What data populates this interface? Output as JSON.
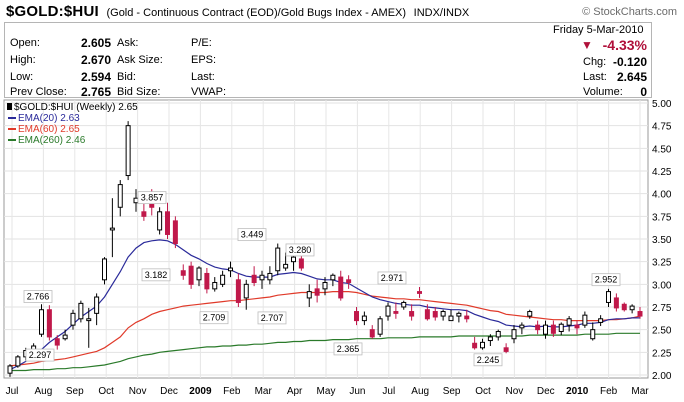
{
  "header": {
    "symbol": "$GOLD:$HUI",
    "description": "(Gold - Continuous Contract (EOD)/Gold Bugs Index - AMEX)",
    "exchange": "INDX/INDX",
    "brand": "© StockCharts.com"
  },
  "quote": {
    "date": "Friday 5-Mar-2010",
    "open_label": "Open:",
    "open": "2.605",
    "high_label": "High:",
    "high": "2.670",
    "low_label": "Low:",
    "low": "2.594",
    "prevclose_label": "Prev Close:",
    "prevclose": "2.765",
    "ask_label": "Ask:",
    "asksize_label": "Ask Size:",
    "bid_label": "Bid:",
    "bidsize_label": "Bid Size:",
    "pe_label": "P/E:",
    "eps_label": "EPS:",
    "last_label": "Last:",
    "vwap_label": "VWAP:",
    "change_pct": "-4.33%",
    "chg_label": "Chg:",
    "chg": "-0.120",
    "last_label2": "Last:",
    "last": "2.645",
    "volume_label": "Volume:",
    "volume": "0",
    "down_color": "#b0103a"
  },
  "chart_data": {
    "type": "candlestick",
    "title": "$GOLD:$HUI (Weekly) 2.65",
    "ylim": [
      2.0,
      5.0
    ],
    "y_ticks": [
      "2.00",
      "2.25",
      "2.50",
      "2.75",
      "3.00",
      "3.25",
      "3.50",
      "3.75",
      "4.00",
      "4.25",
      "4.50",
      "4.75",
      "5.00"
    ],
    "x_ticks": [
      "Jul",
      "Aug",
      "Sep",
      "Oct",
      "Nov",
      "Dec",
      "2009",
      "Feb",
      "Mar",
      "Apr",
      "May",
      "Jun",
      "Jul",
      "Aug",
      "Sep",
      "Oct",
      "Nov",
      "Dec",
      "2010",
      "Feb",
      "Mar"
    ],
    "legend": [
      {
        "name": "EMA(20) 2.63",
        "color": "#2a2a9a"
      },
      {
        "name": "EMA(60) 2.65",
        "color": "#e03a2a"
      },
      {
        "name": "EMA(260) 2.46",
        "color": "#2a7a2a"
      }
    ],
    "up_color": "#000000",
    "down_color": "#c0184a",
    "annotations": [
      {
        "text": "2.766",
        "value": 2.766
      },
      {
        "text": "2.297",
        "value": 2.297
      },
      {
        "text": "3.857",
        "value": 3.857
      },
      {
        "text": "3.182",
        "value": 3.182
      },
      {
        "text": "2.709",
        "value": 2.709
      },
      {
        "text": "3.449",
        "value": 3.449
      },
      {
        "text": "2.707",
        "value": 2.707
      },
      {
        "text": "3.280",
        "value": 3.28
      },
      {
        "text": "2.365",
        "value": 2.365
      },
      {
        "text": "2.971",
        "value": 2.971
      },
      {
        "text": "2.245",
        "value": 2.245
      },
      {
        "text": "2.952",
        "value": 2.952
      }
    ],
    "candles": [
      {
        "o": 2.02,
        "h": 2.12,
        "l": 1.98,
        "c": 2.1
      },
      {
        "o": 2.1,
        "h": 2.22,
        "l": 2.08,
        "c": 2.2
      },
      {
        "o": 2.2,
        "h": 2.3,
        "l": 2.16,
        "c": 2.27
      },
      {
        "o": 2.26,
        "h": 2.35,
        "l": 2.2,
        "c": 2.32
      },
      {
        "o": 2.45,
        "h": 2.78,
        "l": 2.42,
        "c": 2.72
      },
      {
        "o": 2.72,
        "h": 2.77,
        "l": 2.38,
        "c": 2.42
      },
      {
        "o": 2.4,
        "h": 2.44,
        "l": 2.28,
        "c": 2.33
      },
      {
        "o": 2.4,
        "h": 2.5,
        "l": 2.38,
        "c": 2.44
      },
      {
        "o": 2.55,
        "h": 2.72,
        "l": 2.5,
        "c": 2.68
      },
      {
        "o": 2.62,
        "h": 2.82,
        "l": 2.58,
        "c": 2.79
      },
      {
        "o": 2.6,
        "h": 2.74,
        "l": 2.3,
        "c": 2.62
      },
      {
        "o": 2.68,
        "h": 2.9,
        "l": 2.55,
        "c": 2.86
      },
      {
        "o": 3.05,
        "h": 3.3,
        "l": 3.0,
        "c": 3.28
      },
      {
        "o": 3.6,
        "h": 3.95,
        "l": 3.3,
        "c": 3.62
      },
      {
        "o": 3.85,
        "h": 4.15,
        "l": 3.75,
        "c": 4.1
      },
      {
        "o": 4.2,
        "h": 4.8,
        "l": 4.15,
        "c": 4.75
      },
      {
        "o": 3.9,
        "h": 4.05,
        "l": 3.8,
        "c": 3.95
      },
      {
        "o": 3.8,
        "h": 3.9,
        "l": 3.7,
        "c": 3.75
      },
      {
        "o": 3.9,
        "h": 4.05,
        "l": 3.76,
        "c": 3.85
      },
      {
        "o": 3.6,
        "h": 3.85,
        "l": 3.55,
        "c": 3.8
      },
      {
        "o": 3.8,
        "h": 3.9,
        "l": 3.5,
        "c": 3.55
      },
      {
        "o": 3.7,
        "h": 3.75,
        "l": 3.4,
        "c": 3.45
      },
      {
        "o": 3.15,
        "h": 3.22,
        "l": 3.05,
        "c": 3.1
      },
      {
        "o": 3.2,
        "h": 3.25,
        "l": 2.95,
        "c": 3.0
      },
      {
        "o": 3.05,
        "h": 3.2,
        "l": 2.98,
        "c": 3.18
      },
      {
        "o": 3.12,
        "h": 3.18,
        "l": 2.9,
        "c": 2.95
      },
      {
        "o": 2.95,
        "h": 3.08,
        "l": 2.92,
        "c": 3.02
      },
      {
        "o": 3.0,
        "h": 3.15,
        "l": 2.97,
        "c": 3.1
      },
      {
        "o": 3.15,
        "h": 3.25,
        "l": 3.08,
        "c": 3.18
      },
      {
        "o": 3.05,
        "h": 3.12,
        "l": 2.75,
        "c": 2.8
      },
      {
        "o": 2.85,
        "h": 3.05,
        "l": 2.72,
        "c": 3.0
      },
      {
        "o": 3.1,
        "h": 3.2,
        "l": 2.98,
        "c": 3.02
      },
      {
        "o": 3.05,
        "h": 3.15,
        "l": 2.95,
        "c": 3.1
      },
      {
        "o": 3.05,
        "h": 3.2,
        "l": 3.0,
        "c": 3.12
      },
      {
        "o": 3.15,
        "h": 3.45,
        "l": 3.1,
        "c": 3.4
      },
      {
        "o": 3.18,
        "h": 3.35,
        "l": 3.15,
        "c": 3.22
      },
      {
        "o": 3.25,
        "h": 3.35,
        "l": 3.15,
        "c": 3.3
      },
      {
        "o": 3.28,
        "h": 3.32,
        "l": 3.15,
        "c": 3.18
      },
      {
        "o": 2.85,
        "h": 3.0,
        "l": 2.75,
        "c": 2.92
      },
      {
        "o": 2.95,
        "h": 3.05,
        "l": 2.8,
        "c": 2.88
      },
      {
        "o": 2.95,
        "h": 3.08,
        "l": 2.88,
        "c": 3.02
      },
      {
        "o": 3.05,
        "h": 3.12,
        "l": 2.98,
        "c": 3.1
      },
      {
        "o": 3.08,
        "h": 3.15,
        "l": 2.82,
        "c": 2.85
      },
      {
        "o": 3.05,
        "h": 3.1,
        "l": 2.95,
        "c": 3.02
      },
      {
        "o": 2.7,
        "h": 2.75,
        "l": 2.55,
        "c": 2.6
      },
      {
        "o": 2.6,
        "h": 2.7,
        "l": 2.55,
        "c": 2.65
      },
      {
        "o": 2.5,
        "h": 2.55,
        "l": 2.4,
        "c": 2.42
      },
      {
        "o": 2.45,
        "h": 2.65,
        "l": 2.42,
        "c": 2.62
      },
      {
        "o": 2.65,
        "h": 2.8,
        "l": 2.6,
        "c": 2.76
      },
      {
        "o": 2.7,
        "h": 2.8,
        "l": 2.62,
        "c": 2.68
      },
      {
        "o": 2.75,
        "h": 2.82,
        "l": 2.72,
        "c": 2.8
      },
      {
        "o": 2.7,
        "h": 2.78,
        "l": 2.6,
        "c": 2.65
      },
      {
        "o": 2.92,
        "h": 2.97,
        "l": 2.85,
        "c": 2.9
      },
      {
        "o": 2.72,
        "h": 2.78,
        "l": 2.6,
        "c": 2.62
      },
      {
        "o": 2.7,
        "h": 2.75,
        "l": 2.6,
        "c": 2.64
      },
      {
        "o": 2.65,
        "h": 2.72,
        "l": 2.6,
        "c": 2.7
      },
      {
        "o": 2.6,
        "h": 2.72,
        "l": 2.6,
        "c": 2.65
      },
      {
        "o": 2.65,
        "h": 2.7,
        "l": 2.58,
        "c": 2.68
      },
      {
        "o": 2.65,
        "h": 2.72,
        "l": 2.58,
        "c": 2.62
      },
      {
        "o": 2.35,
        "h": 2.42,
        "l": 2.28,
        "c": 2.3
      },
      {
        "o": 2.3,
        "h": 2.4,
        "l": 2.28,
        "c": 2.36
      },
      {
        "o": 2.38,
        "h": 2.45,
        "l": 2.32,
        "c": 2.42
      },
      {
        "o": 2.42,
        "h": 2.5,
        "l": 2.38,
        "c": 2.48
      },
      {
        "o": 2.3,
        "h": 2.35,
        "l": 2.24,
        "c": 2.26
      },
      {
        "o": 2.4,
        "h": 2.55,
        "l": 2.35,
        "c": 2.5
      },
      {
        "o": 2.52,
        "h": 2.58,
        "l": 2.45,
        "c": 2.55
      },
      {
        "o": 2.65,
        "h": 2.72,
        "l": 2.62,
        "c": 2.7
      },
      {
        "o": 2.55,
        "h": 2.6,
        "l": 2.45,
        "c": 2.5
      },
      {
        "o": 2.45,
        "h": 2.6,
        "l": 2.4,
        "c": 2.55
      },
      {
        "o": 2.55,
        "h": 2.6,
        "l": 2.42,
        "c": 2.46
      },
      {
        "o": 2.48,
        "h": 2.58,
        "l": 2.44,
        "c": 2.56
      },
      {
        "o": 2.55,
        "h": 2.65,
        "l": 2.48,
        "c": 2.62
      },
      {
        "o": 2.55,
        "h": 2.6,
        "l": 2.45,
        "c": 2.52
      },
      {
        "o": 2.55,
        "h": 2.7,
        "l": 2.52,
        "c": 2.66
      },
      {
        "o": 2.4,
        "h": 2.58,
        "l": 2.38,
        "c": 2.5
      },
      {
        "o": 2.58,
        "h": 2.66,
        "l": 2.54,
        "c": 2.62
      },
      {
        "o": 2.8,
        "h": 2.95,
        "l": 2.75,
        "c": 2.92
      },
      {
        "o": 2.85,
        "h": 2.9,
        "l": 2.7,
        "c": 2.74
      },
      {
        "o": 2.78,
        "h": 2.8,
        "l": 2.7,
        "c": 2.72
      },
      {
        "o": 2.72,
        "h": 2.78,
        "l": 2.68,
        "c": 2.76
      },
      {
        "o": 2.7,
        "h": 2.75,
        "l": 2.62,
        "c": 2.65
      }
    ],
    "ema20": [
      2.06,
      2.1,
      2.15,
      2.2,
      2.28,
      2.36,
      2.42,
      2.48,
      2.56,
      2.64,
      2.7,
      2.76,
      2.86,
      3.0,
      3.14,
      3.3,
      3.4,
      3.46,
      3.48,
      3.49,
      3.48,
      3.44,
      3.38,
      3.32,
      3.28,
      3.23,
      3.19,
      3.17,
      3.16,
      3.12,
      3.09,
      3.08,
      3.08,
      3.08,
      3.11,
      3.12,
      3.13,
      3.12,
      3.09,
      3.06,
      3.05,
      3.05,
      3.02,
      3.01,
      2.96,
      2.91,
      2.86,
      2.83,
      2.81,
      2.79,
      2.78,
      2.77,
      2.77,
      2.75,
      2.74,
      2.73,
      2.72,
      2.72,
      2.71,
      2.67,
      2.64,
      2.61,
      2.59,
      2.55,
      2.54,
      2.53,
      2.54,
      2.53,
      2.54,
      2.53,
      2.53,
      2.54,
      2.55,
      2.57,
      2.57,
      2.58,
      2.61,
      2.62,
      2.62,
      2.63,
      2.63
    ],
    "ema60": [
      2.1,
      2.11,
      2.12,
      2.13,
      2.15,
      2.16,
      2.17,
      2.18,
      2.2,
      2.22,
      2.24,
      2.26,
      2.3,
      2.36,
      2.42,
      2.52,
      2.58,
      2.62,
      2.67,
      2.7,
      2.72,
      2.74,
      2.76,
      2.77,
      2.78,
      2.79,
      2.8,
      2.81,
      2.82,
      2.82,
      2.83,
      2.84,
      2.85,
      2.86,
      2.88,
      2.89,
      2.9,
      2.91,
      2.91,
      2.91,
      2.91,
      2.92,
      2.92,
      2.92,
      2.91,
      2.89,
      2.87,
      2.86,
      2.85,
      2.84,
      2.84,
      2.83,
      2.83,
      2.82,
      2.81,
      2.8,
      2.79,
      2.78,
      2.77,
      2.75,
      2.73,
      2.71,
      2.7,
      2.67,
      2.66,
      2.65,
      2.64,
      2.63,
      2.62,
      2.61,
      2.61,
      2.6,
      2.6,
      2.6,
      2.6,
      2.6,
      2.61,
      2.61,
      2.62,
      2.63,
      2.65
    ],
    "ema260": [
      2.05,
      2.05,
      2.05,
      2.06,
      2.06,
      2.06,
      2.07,
      2.07,
      2.08,
      2.08,
      2.09,
      2.1,
      2.11,
      2.13,
      2.15,
      2.18,
      2.2,
      2.22,
      2.23,
      2.25,
      2.26,
      2.27,
      2.28,
      2.29,
      2.3,
      2.31,
      2.31,
      2.32,
      2.32,
      2.33,
      2.33,
      2.34,
      2.34,
      2.35,
      2.36,
      2.36,
      2.37,
      2.37,
      2.38,
      2.38,
      2.38,
      2.39,
      2.39,
      2.39,
      2.4,
      2.4,
      2.4,
      2.4,
      2.41,
      2.41,
      2.41,
      2.41,
      2.42,
      2.42,
      2.42,
      2.42,
      2.42,
      2.43,
      2.43,
      2.43,
      2.43,
      2.43,
      2.43,
      2.43,
      2.43,
      2.43,
      2.44,
      2.44,
      2.44,
      2.44,
      2.44,
      2.44,
      2.44,
      2.45,
      2.45,
      2.45,
      2.45,
      2.46,
      2.46,
      2.46,
      2.46
    ]
  }
}
